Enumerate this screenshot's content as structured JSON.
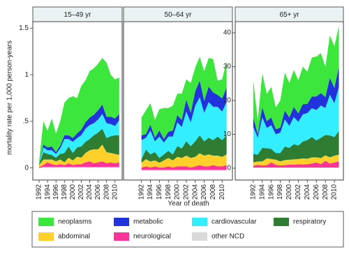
{
  "y_axis_title": "mortality rate per 1,000 person-years",
  "x_axis_title": "Year of death",
  "chart_data": [
    {
      "type": "stacked-area",
      "title": "15–49 yr",
      "x": [
        1992,
        1993,
        1994,
        1995,
        1996,
        1997,
        1998,
        1999,
        2000,
        2001,
        2002,
        2003,
        2004,
        2005,
        2006,
        2007,
        2008,
        2009,
        2010,
        2011
      ],
      "xlim": [
        1990.5,
        2011.7
      ],
      "xticks": [
        1992,
        1994,
        1996,
        1998,
        2000,
        2002,
        2004,
        2006,
        2008,
        2010
      ],
      "ylim": [
        -0.13,
        1.57
      ],
      "yticks": [
        0,
        {
          "value": 0.5,
          "label": ".5"
        },
        1,
        1.5
      ],
      "series": [
        {
          "name": "neoplasms",
          "color": "#3ce63c",
          "values": [
            0.02,
            0.25,
            0.18,
            0.3,
            0.2,
            0.26,
            0.35,
            0.4,
            0.45,
            0.38,
            0.47,
            0.45,
            0.5,
            0.5,
            0.5,
            0.5,
            0.58,
            0.45,
            0.42,
            0.39
          ]
        },
        {
          "name": "metabolic",
          "color": "#2233dd",
          "values": [
            0,
            0.03,
            0.03,
            0.04,
            0.02,
            0.03,
            0.04,
            0.04,
            0.04,
            0.05,
            0.06,
            0.07,
            0.08,
            0.09,
            0.1,
            0.1,
            0.07,
            0.08,
            0.08,
            0.07
          ]
        },
        {
          "name": "cardiovascular",
          "color": "#33eeff",
          "values": [
            0.01,
            0.05,
            0.04,
            0.05,
            0.04,
            0.06,
            0.15,
            0.08,
            0.12,
            0.1,
            0.12,
            0.14,
            0.15,
            0.13,
            0.14,
            0.16,
            0.16,
            0.13,
            0.1,
            0.16
          ]
        },
        {
          "name": "respiratory",
          "color": "#2e7d32",
          "values": [
            0.01,
            0.08,
            0.06,
            0.05,
            0.04,
            0.06,
            0.1,
            0.12,
            0.08,
            0.1,
            0.12,
            0.12,
            0.12,
            0.15,
            0.18,
            0.17,
            0.15,
            0.18,
            0.2,
            0.21
          ]
        },
        {
          "name": "abdominal",
          "color": "#ffcf2a",
          "values": [
            0.02,
            0.06,
            0.03,
            0.05,
            0.04,
            0.05,
            0.03,
            0.06,
            0.05,
            0.08,
            0.07,
            0.1,
            0.12,
            0.15,
            0.14,
            0.18,
            0.12,
            0.1,
            0.1,
            0.08
          ]
        },
        {
          "name": "neurological",
          "color": "#ff3399",
          "values": [
            0.01,
            0.02,
            0.05,
            0.03,
            0.02,
            0.03,
            0.02,
            0.04,
            0.02,
            0.03,
            0.03,
            0.05,
            0.06,
            0.04,
            0.05,
            0.06,
            0.04,
            0.05,
            0.04,
            0.05
          ]
        },
        {
          "name": "other NCD",
          "color": "#d9d9d9",
          "values": [
            0,
            0.01,
            0.01,
            0.01,
            0.01,
            0.01,
            0.01,
            0.01,
            0.01,
            0.01,
            0.01,
            0.01,
            0.01,
            0.01,
            0.01,
            0.01,
            0.01,
            0.01,
            0.01,
            0.01
          ]
        }
      ]
    },
    {
      "type": "stacked-area",
      "title": "50–64 yr",
      "x": [
        1992,
        1993,
        1994,
        1995,
        1996,
        1997,
        1998,
        1999,
        2000,
        2001,
        2002,
        2003,
        2004,
        2005,
        2006,
        2007,
        2008,
        2009,
        2010,
        2011
      ],
      "xlim": [
        1988,
        2012.3
      ],
      "xticks": [
        1992,
        1994,
        1996,
        1998,
        2000,
        2002,
        2004,
        2006,
        2008,
        2010
      ],
      "ylim": [
        -0.8,
        12.5
      ],
      "series": [
        {
          "name": "neoplasms",
          "color": "#3ce63c",
          "values": [
            1.5,
            2.0,
            1.8,
            1.5,
            1.8,
            2.6,
            2.0,
            2.1,
            1.8,
            2.2,
            1.7,
            2.5,
            2.0,
            2.0,
            2.5,
            2.4,
            2.8,
            1.2,
            1.6,
            2.2
          ]
        },
        {
          "name": "metabolic",
          "color": "#2233dd",
          "values": [
            0.4,
            0.3,
            0.5,
            0.3,
            0.5,
            0.3,
            0.4,
            0.5,
            0.6,
            0.6,
            1.0,
            0.8,
            1.2,
            1.4,
            1.0,
            1.3,
            1.2,
            1.0,
            1.1,
            1.2
          ]
        },
        {
          "name": "cardiovascular",
          "color": "#33eeff",
          "values": [
            1.6,
            1.0,
            2.0,
            0.9,
            1.8,
            1.0,
            1.2,
            1.5,
            2.0,
            1.8,
            2.5,
            2.0,
            3.0,
            3.2,
            2.4,
            3.0,
            2.8,
            2.5,
            2.4,
            2.8
          ]
        },
        {
          "name": "respiratory",
          "color": "#2e7d32",
          "values": [
            0.3,
            0.8,
            0.6,
            0.7,
            0.4,
            0.5,
            0.6,
            0.5,
            0.9,
            0.8,
            1.2,
            1.0,
            1.3,
            1.5,
            1.2,
            1.4,
            1.3,
            1.6,
            1.4,
            1.6
          ]
        },
        {
          "name": "abdominal",
          "color": "#ffcf2a",
          "values": [
            0.4,
            0.6,
            0.5,
            0.5,
            0.4,
            0.6,
            0.7,
            0.6,
            0.8,
            0.7,
            0.9,
            0.8,
            0.8,
            1.0,
            0.9,
            1.0,
            0.8,
            0.9,
            0.8,
            0.9
          ]
        },
        {
          "name": "neurological",
          "color": "#ff3399",
          "values": [
            0.2,
            0.3,
            0.2,
            0.3,
            0.2,
            0.2,
            0.3,
            0.2,
            0.3,
            0.3,
            0.3,
            0.2,
            0.3,
            0.4,
            0.3,
            0.3,
            0.4,
            0.3,
            0.3,
            0.4
          ]
        },
        {
          "name": "other NCD",
          "color": "#d9d9d9",
          "values": [
            0.05,
            0.05,
            0.05,
            0.05,
            0.05,
            0.05,
            0.05,
            0.05,
            0.05,
            0.05,
            0.05,
            0.05,
            0.05,
            0.05,
            0.05,
            0.05,
            0.05,
            0.05,
            0.05,
            0.05
          ]
        }
      ]
    },
    {
      "type": "stacked-area",
      "title": "65+ yr",
      "x": [
        1992,
        1993,
        1994,
        1995,
        1996,
        1997,
        1998,
        1999,
        2000,
        2001,
        2002,
        2003,
        2004,
        2005,
        2006,
        2007,
        2008,
        2009,
        2010,
        2011
      ],
      "xlim": [
        1988,
        2012
      ],
      "xticks": [
        1992,
        1994,
        1996,
        1998,
        2000,
        2002,
        2004,
        2006,
        2008,
        2010
      ],
      "ylim": [
        -3.5,
        43.3
      ],
      "yticks": [
        0,
        10,
        20,
        30,
        40
      ],
      "series": [
        {
          "name": "neoplasms",
          "color": "#3ce63c",
          "values": [
            11,
            4,
            10,
            8.1,
            9,
            6.5,
            8,
            11.2,
            10.2,
            10.9,
            9.8,
            11.1,
            9.5,
            11.5,
            11.8,
            11.8,
            9,
            12.5,
            12.3,
            12
          ]
        },
        {
          "name": "metabolic",
          "color": "#2233dd",
          "values": [
            2.8,
            1.0,
            3.0,
            2.0,
            2.3,
            1.5,
            1.5,
            2.6,
            2.5,
            3.0,
            2.5,
            3.0,
            2.7,
            3.5,
            4.0,
            3.7,
            3.2,
            5.0,
            4.5,
            6.0
          ]
        },
        {
          "name": "cardiovascular",
          "color": "#33eeff",
          "values": [
            8.0,
            5.0,
            9.0,
            6.0,
            7.0,
            5.5,
            6.0,
            8.0,
            6.5,
            8.0,
            7.0,
            8.0,
            8.0,
            8.5,
            9.0,
            9.5,
            8.0,
            12.0,
            10.0,
            13.0
          ]
        },
        {
          "name": "respiratory",
          "color": "#2e7d32",
          "values": [
            2.5,
            2.0,
            4.0,
            3.0,
            3.0,
            2.0,
            2.5,
            4.0,
            3.5,
            4.5,
            4.0,
            5.0,
            5.5,
            6.0,
            5.0,
            6.0,
            6.0,
            6.5,
            5.5,
            7.0
          ]
        },
        {
          "name": "abdominal",
          "color": "#ffcf2a",
          "values": [
            1.0,
            1.0,
            1.2,
            2.0,
            1.0,
            1.5,
            1.2,
            1.5,
            1.4,
            1.6,
            1.5,
            1.8,
            1.6,
            1.8,
            1.5,
            1.8,
            1.6,
            1.8,
            2.0,
            2.0
          ]
        },
        {
          "name": "neurological",
          "color": "#ff3399",
          "values": [
            0.5,
            0.8,
            0.6,
            0.7,
            1.5,
            0.8,
            0.6,
            0.7,
            0.9,
            0.8,
            1.0,
            0.9,
            1.0,
            1.2,
            1.5,
            1.0,
            2.0,
            1.2,
            1.5,
            1.8
          ]
        },
        {
          "name": "other NCD",
          "color": "#d9d9d9",
          "values": [
            0.2,
            0.2,
            0.2,
            0.2,
            0.2,
            0.2,
            0.2,
            0.2,
            0.2,
            0.2,
            0.2,
            0.2,
            0.2,
            0.2,
            0.2,
            0.2,
            0.2,
            0.2,
            0.2,
            0.2
          ]
        }
      ]
    }
  ]
}
